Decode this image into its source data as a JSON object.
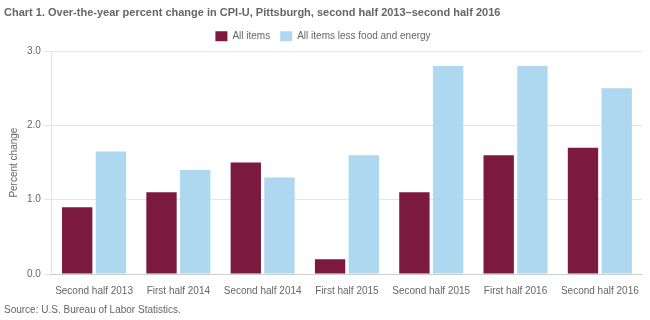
{
  "chart_data": {
    "type": "bar",
    "title": "Chart 1. Over-the-year percent change in CPI-U, Pittsburgh, second half 2013–second half 2016",
    "ylabel": "Percent change",
    "annotations": [
      "Source: U.S. Bureau of Labor Statistics."
    ],
    "categories": [
      "Second half 2013",
      "First half 2014",
      "Second half 2014",
      "First half 2015",
      "Second half 2015",
      "First half 2016",
      "Second half 2016"
    ],
    "series": [
      {
        "name": "All items",
        "color": "#7b1a3e",
        "values": [
          0.9,
          1.1,
          1.5,
          0.2,
          1.1,
          1.6,
          1.7
        ]
      },
      {
        "name": "All items less food and energy",
        "color": "#add8f0",
        "values": [
          1.65,
          1.4,
          1.3,
          1.6,
          2.8,
          2.8,
          2.5
        ]
      }
    ],
    "ylim": [
      0.0,
      3.0
    ],
    "yticks": [
      {
        "value": 0,
        "label": "0.0"
      },
      {
        "value": 1,
        "label": "1.0"
      },
      {
        "value": 2,
        "label": "2.0"
      },
      {
        "value": 3,
        "label": "3.0"
      }
    ],
    "grid": true,
    "legend": "top"
  }
}
